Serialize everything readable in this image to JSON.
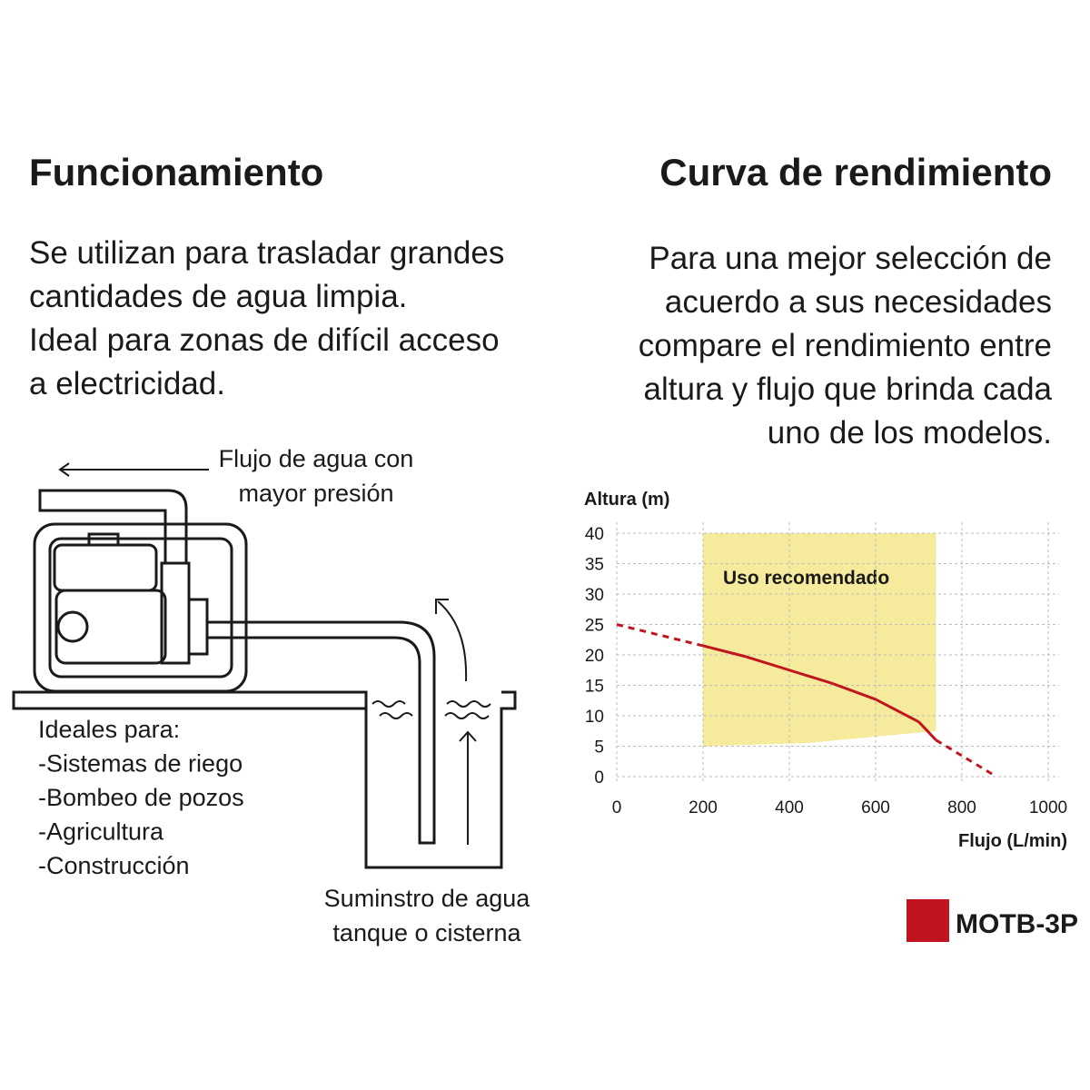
{
  "left": {
    "title": "Funcionamiento",
    "paragraph": [
      "Se utilizan para trasladar grandes",
      "cantidades de agua limpia.",
      "Ideal para zonas de difícil acceso",
      "a electricidad."
    ],
    "flow_label": [
      "Flujo de agua con",
      "mayor presión"
    ],
    "uses": [
      "Ideales para:",
      "-Sistemas de riego",
      "-Bombeo de pozos",
      "-Agricultura",
      "-Construcción"
    ],
    "supply_label": [
      "Suminstro de agua",
      "tanque o cisterna"
    ]
  },
  "right": {
    "title": "Curva de rendimiento",
    "paragraph": [
      "Para una mejor selección de",
      "acuerdo a sus necesidades",
      "compare el rendimiento entre",
      "altura y flujo que brinda cada",
      "uno de los modelos."
    ]
  },
  "chart_data": {
    "type": "line",
    "y_label": "Altura (m)",
    "x_label": "Flujo (L/min)",
    "xlim": [
      0,
      1000
    ],
    "ylim": [
      0,
      40
    ],
    "xticks": [
      0,
      200,
      400,
      600,
      800,
      1000
    ],
    "yticks": [
      0,
      5,
      10,
      15,
      20,
      25,
      30,
      35,
      40
    ],
    "grid": true,
    "band": {
      "label": "Uso recomendado",
      "color": "#f6eb9c",
      "x": [
        200,
        440,
        740
      ],
      "y_low": [
        5,
        5.5,
        7.5
      ],
      "y_high": [
        40,
        40,
        40
      ]
    },
    "series": [
      {
        "name": "MOTB-3P",
        "color": "#c0141e",
        "x": [
          0,
          200,
          300,
          400,
          500,
          600,
          700,
          740,
          810,
          880
        ],
        "values": [
          25,
          21.5,
          19.7,
          17.5,
          15.3,
          12.7,
          9,
          6,
          3,
          0
        ],
        "segment_styles": [
          "dashed",
          "solid",
          "solid",
          "solid",
          "solid",
          "solid",
          "solid",
          "dashed",
          "dashed"
        ]
      }
    ]
  }
}
